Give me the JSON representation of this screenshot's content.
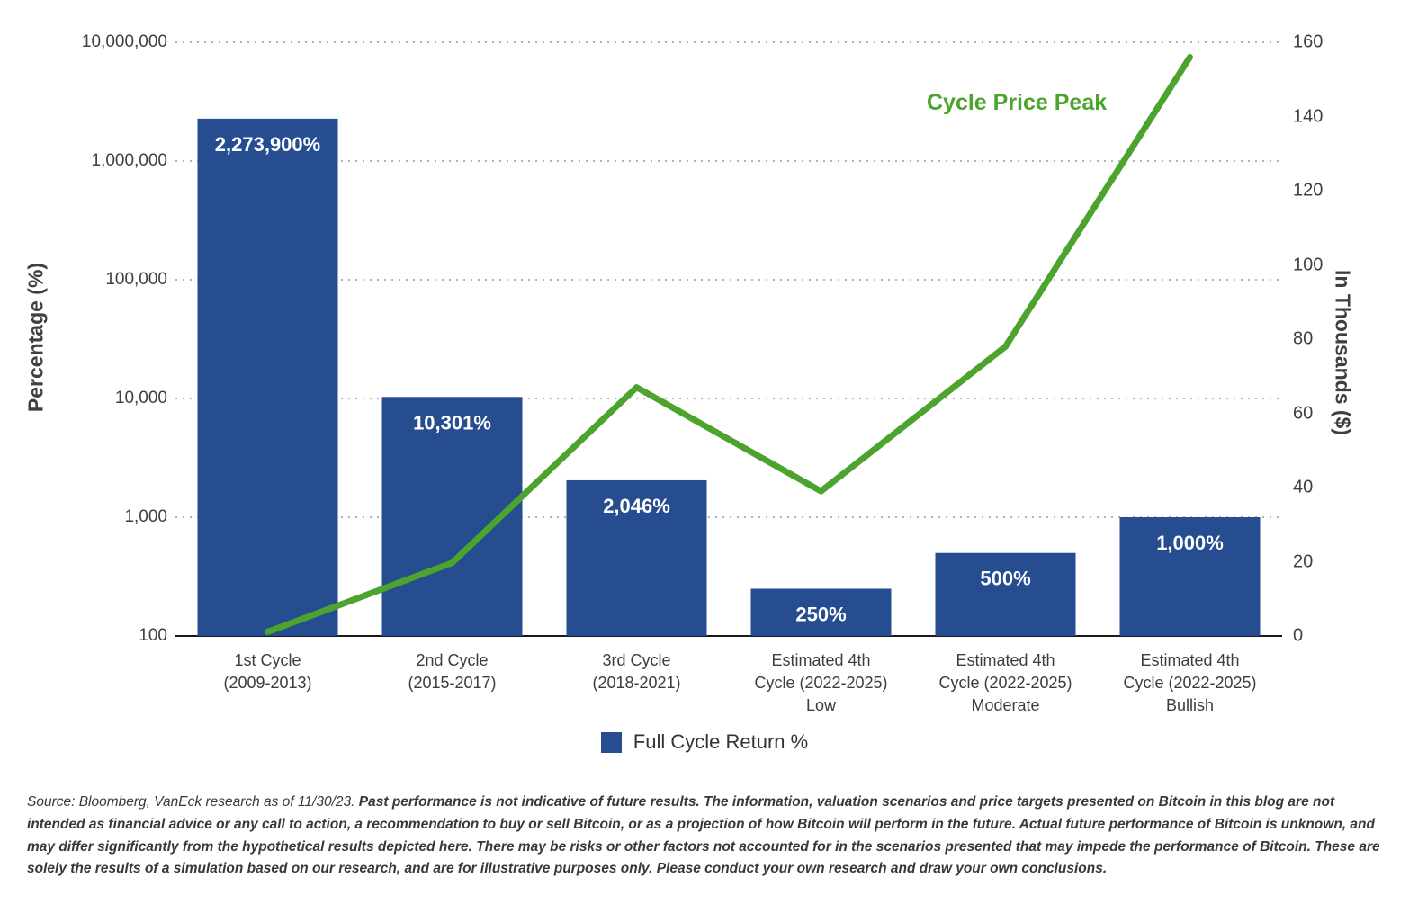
{
  "chart_data": {
    "type": "bar",
    "title": "",
    "categories": [
      "1st Cycle\n(2009-2013)",
      "2nd Cycle\n(2015-2017)",
      "3rd Cycle\n(2018-2021)",
      "Estimated 4th\nCycle (2022-2025)\nLow",
      "Estimated 4th\nCycle (2022-2025)\nModerate",
      "Estimated 4th\nCycle (2022-2025)\nBullish"
    ],
    "bar_series": {
      "name": "Full Cycle Return %",
      "values": [
        2273900,
        10301,
        2046,
        250,
        500,
        1000
      ],
      "labels": [
        "2,273,900%",
        "10,301%",
        "2,046%",
        "250%",
        "500%",
        "1,000%"
      ],
      "color": "#254D90"
    },
    "line_series": {
      "name": "Cycle Price Peak",
      "values": [
        1.1,
        19.7,
        67,
        39,
        78,
        156
      ],
      "color": "#4CA32D",
      "axis": "right"
    },
    "left_axis": {
      "label": "Percentage (%)",
      "scale": "log",
      "min": 100,
      "max": 10000000,
      "ticks": [
        "10,000,000",
        "1,000,000",
        "100,000",
        "10,000",
        "1,000",
        "100"
      ]
    },
    "right_axis": {
      "label": "In Thousands ($)",
      "scale": "linear",
      "min": 0,
      "max": 160,
      "ticks": [
        "160",
        "140",
        "120",
        "100",
        "80",
        "60",
        "40",
        "20",
        "0"
      ]
    },
    "legend": {
      "bar_label": "Full Cycle Return %",
      "line_label": "Cycle Price Peak",
      "position": "bottom"
    },
    "grid": "dotted-horizontal"
  },
  "footer": {
    "source": "Source: Bloomberg, VanEck research as of 11/30/23.",
    "disclaimer": "Past performance is not indicative of future results. The information, valuation scenarios and price targets presented on Bitcoin in this blog are not intended as financial advice or any call to action, a recommendation to buy or sell Bitcoin, or as a projection of how Bitcoin will perform in the future. Actual future performance of Bitcoin is unknown, and may differ significantly from the hypothetical results depicted here. There may be risks or other factors not accounted for in the scenarios presented that may impede the performance of Bitcoin. These are solely the results of a simulation based on our research, and are for illustrative purposes only. Please conduct your own research and draw your own conclusions."
  }
}
